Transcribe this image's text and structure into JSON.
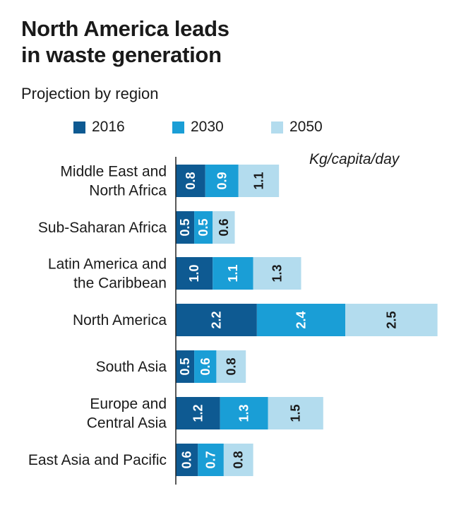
{
  "title": "North America leads\nin waste generation",
  "subtitle": "Projection by region",
  "unit_label": "Kg/capita/day",
  "colors": {
    "2016": "#0e5a92",
    "2030": "#1a9ed6",
    "2050": "#b3dcee"
  },
  "chart_data": {
    "type": "bar",
    "orientation": "horizontal",
    "stacked": true,
    "categories": [
      "Middle East and\nNorth Africa",
      "Sub-Saharan Africa",
      "Latin America and\nthe Caribbean",
      "North America",
      "South Asia",
      "Europe and\nCentral Asia",
      "East Asia and Pacific"
    ],
    "series": [
      {
        "name": "2016",
        "values": [
          0.8,
          0.5,
          1.0,
          2.2,
          0.5,
          1.2,
          0.6
        ]
      },
      {
        "name": "2030",
        "values": [
          0.9,
          0.5,
          1.1,
          2.4,
          0.6,
          1.3,
          0.7
        ]
      },
      {
        "name": "2050",
        "values": [
          1.1,
          0.6,
          1.3,
          2.5,
          0.8,
          1.5,
          0.8
        ]
      }
    ],
    "data_labels": [
      [
        "0.8",
        "0.5",
        "1.0",
        "2.2",
        "0.5",
        "1.2",
        "0.6"
      ],
      [
        "0.9",
        "0.5",
        "1.1",
        "2.4",
        "0.6",
        "1.3",
        "0.7"
      ],
      [
        "1.1",
        "0.6",
        "1.3",
        "2.5",
        "0.8",
        "1.5",
        "0.8"
      ]
    ],
    "legend_placement": "top",
    "grid": false
  }
}
